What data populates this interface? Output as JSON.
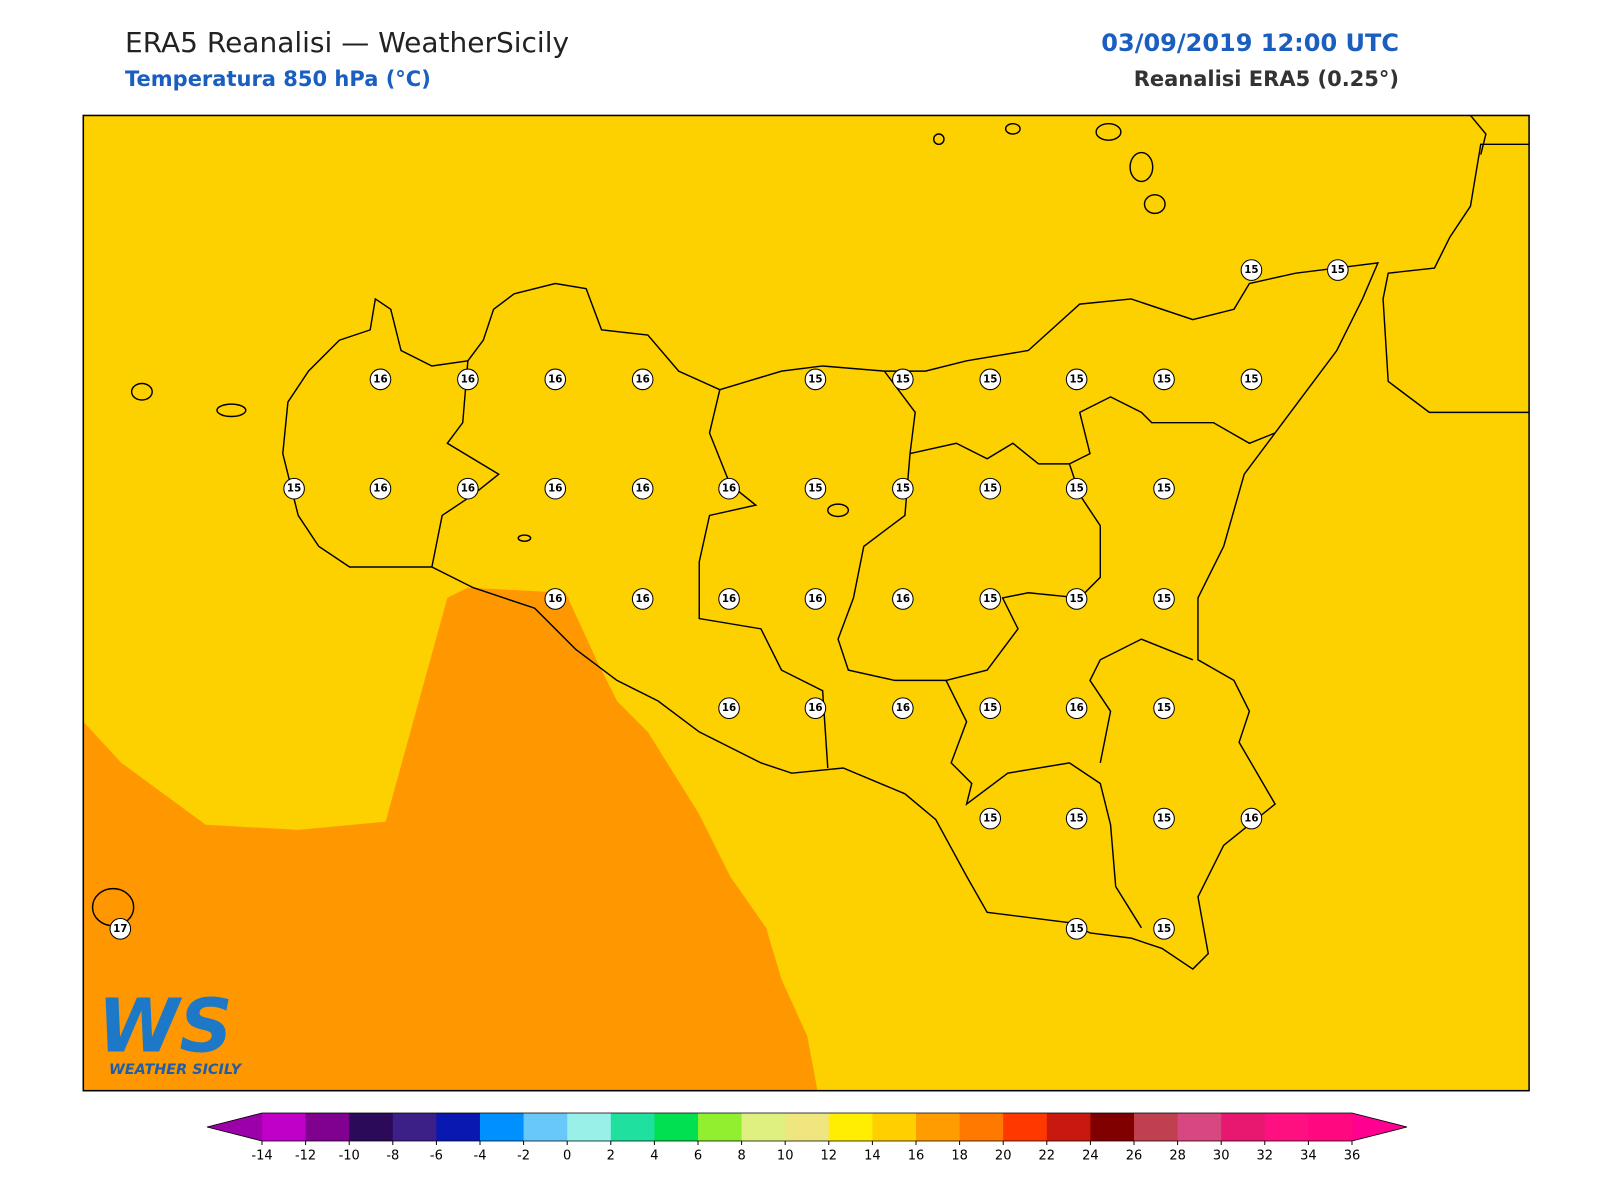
{
  "header": {
    "title": "ERA5 Reanalisi — WeatherSicily",
    "subtitle": "Temperatura 850 hPa (°C)",
    "date": "03/09/2019 12:00 UTC",
    "source": "Reanalisi ERA5 (0.25°)"
  },
  "map": {
    "field_colors": [
      "#fdd000",
      "#ff9800"
    ],
    "point_values": [
      15,
      15,
      16,
      16,
      16,
      16,
      15,
      15,
      15,
      15,
      15,
      15,
      15,
      16,
      16,
      16,
      16,
      16,
      15,
      15,
      15,
      15,
      15,
      16,
      16,
      16,
      16,
      16,
      15,
      15,
      15,
      16,
      16,
      16,
      15,
      16,
      15,
      15,
      15,
      15,
      16,
      15,
      15,
      17
    ]
  },
  "logo": {
    "mark": "WS",
    "text": "WEATHER SICILY"
  },
  "colorbar": {
    "ticks": [
      -14,
      -12,
      -10,
      -8,
      -6,
      -4,
      -2,
      0,
      2,
      4,
      6,
      8,
      10,
      12,
      14,
      16,
      18,
      20,
      22,
      24,
      26,
      28,
      30,
      32,
      34,
      36
    ],
    "under_color": "#9c00a8",
    "over_color": "#ff0090",
    "colors": [
      "#c000c8",
      "#800090",
      "#2c0a5a",
      "#3c2088",
      "#0818b0",
      "#0090ff",
      "#68c8f8",
      "#98f0e8",
      "#20e0a0",
      "#00e050",
      "#90f030",
      "#e0f080",
      "#f0e680",
      "#ffee00",
      "#ffd000",
      "#ff9c00",
      "#ff7800",
      "#ff3800",
      "#c81810",
      "#800000",
      "#c04050",
      "#d84880",
      "#e81870",
      "#ff1080",
      "#ff0880"
    ]
  }
}
